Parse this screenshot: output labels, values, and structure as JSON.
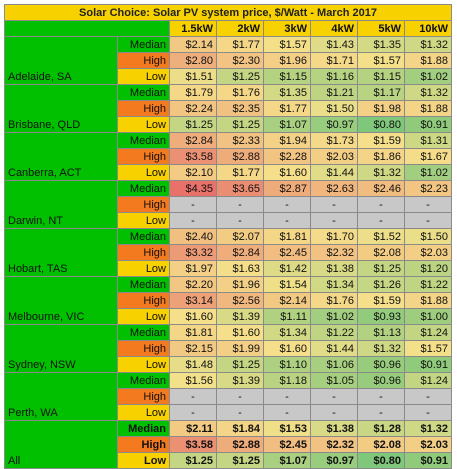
{
  "title": "Solar Choice: Solar PV system price, $/Watt - March 2017",
  "sizes": [
    "1.5kW",
    "2kW",
    "3kW",
    "4kW",
    "5kW",
    "10kW"
  ],
  "metrics": [
    "Median",
    "High",
    "Low"
  ],
  "cities": [
    {
      "name": "Adelaide, SA",
      "rows": [
        [
          "$2.14",
          "$1.77",
          "$1.57",
          "$1.43",
          "$1.35",
          "$1.32"
        ],
        [
          "$2.80",
          "$2.30",
          "$1.96",
          "$1.71",
          "$1.57",
          "$1.88"
        ],
        [
          "$1.51",
          "$1.25",
          "$1.15",
          "$1.16",
          "$1.15",
          "$1.02"
        ]
      ]
    },
    {
      "name": "Brisbane, QLD",
      "rows": [
        [
          "$1.79",
          "$1.76",
          "$1.35",
          "$1.21",
          "$1.17",
          "$1.32"
        ],
        [
          "$2.24",
          "$2.35",
          "$1.77",
          "$1.50",
          "$1.98",
          "$1.88"
        ],
        [
          "$1.25",
          "$1.25",
          "$1.07",
          "$0.97",
          "$0.80",
          "$0.91"
        ]
      ]
    },
    {
      "name": "Canberra, ACT",
      "rows": [
        [
          "$2.84",
          "$2.33",
          "$1.94",
          "$1.73",
          "$1.59",
          "$1.31"
        ],
        [
          "$3.58",
          "$2.88",
          "$2.28",
          "$2.03",
          "$1.86",
          "$1.67"
        ],
        [
          "$2.10",
          "$1.77",
          "$1.60",
          "$1.44",
          "$1.32",
          "$1.02"
        ]
      ]
    },
    {
      "name": "Darwin, NT",
      "rows": [
        [
          "$4.35",
          "$3.65",
          "$2.87",
          "$2.63",
          "$2.46",
          "$2.23"
        ],
        [
          "-",
          "-",
          "-",
          "-",
          "-",
          "-"
        ],
        [
          "-",
          "-",
          "-",
          "-",
          "-",
          "-"
        ]
      ]
    },
    {
      "name": "Hobart, TAS",
      "rows": [
        [
          "$2.40",
          "$2.07",
          "$1.81",
          "$1.70",
          "$1.52",
          "$1.50"
        ],
        [
          "$3.32",
          "$2.84",
          "$2.45",
          "$2.32",
          "$2.08",
          "$2.03"
        ],
        [
          "$1.97",
          "$1.63",
          "$1.42",
          "$1.38",
          "$1.25",
          "$1.20"
        ]
      ]
    },
    {
      "name": "Melbourne, VIC",
      "rows": [
        [
          "$2.20",
          "$1.96",
          "$1.54",
          "$1.34",
          "$1.26",
          "$1.22"
        ],
        [
          "$3.14",
          "$2.56",
          "$2.14",
          "$1.76",
          "$1.59",
          "$1.88"
        ],
        [
          "$1.60",
          "$1.39",
          "$1.11",
          "$1.02",
          "$0.93",
          "$1.00"
        ]
      ]
    },
    {
      "name": "Sydney, NSW",
      "rows": [
        [
          "$1.81",
          "$1.60",
          "$1.34",
          "$1.22",
          "$1.13",
          "$1.24"
        ],
        [
          "$2.15",
          "$1.99",
          "$1.60",
          "$1.44",
          "$1.32",
          "$1.57"
        ],
        [
          "$1.48",
          "$1.25",
          "$1.10",
          "$1.06",
          "$0.96",
          "$0.91"
        ]
      ]
    },
    {
      "name": "Perth, WA",
      "rows": [
        [
          "$1.56",
          "$1.39",
          "$1.18",
          "$1.05",
          "$0.96",
          "$1.24"
        ],
        [
          "-",
          "-",
          "-",
          "-",
          "-",
          "-"
        ],
        [
          "-",
          "-",
          "-",
          "-",
          "-",
          "-"
        ]
      ]
    },
    {
      "name": "All",
      "rows": [
        [
          "$2.11",
          "$1.84",
          "$1.53",
          "$1.38",
          "$1.28",
          "$1.32"
        ],
        [
          "$3.58",
          "$2.88",
          "$2.45",
          "$2.32",
          "$2.08",
          "$2.03"
        ],
        [
          "$1.25",
          "$1.25",
          "$1.07",
          "$0.97",
          "$0.80",
          "$0.91"
        ]
      ]
    }
  ],
  "colors": {
    "label_green": "#00c000",
    "label_orange": "#f47a20",
    "label_yellow": "#f7d100",
    "na_grey": "#c8c8c8",
    "scale_low": "#7fc77a",
    "scale_mid": "#f5e08a",
    "scale_high": "#e8716a"
  }
}
